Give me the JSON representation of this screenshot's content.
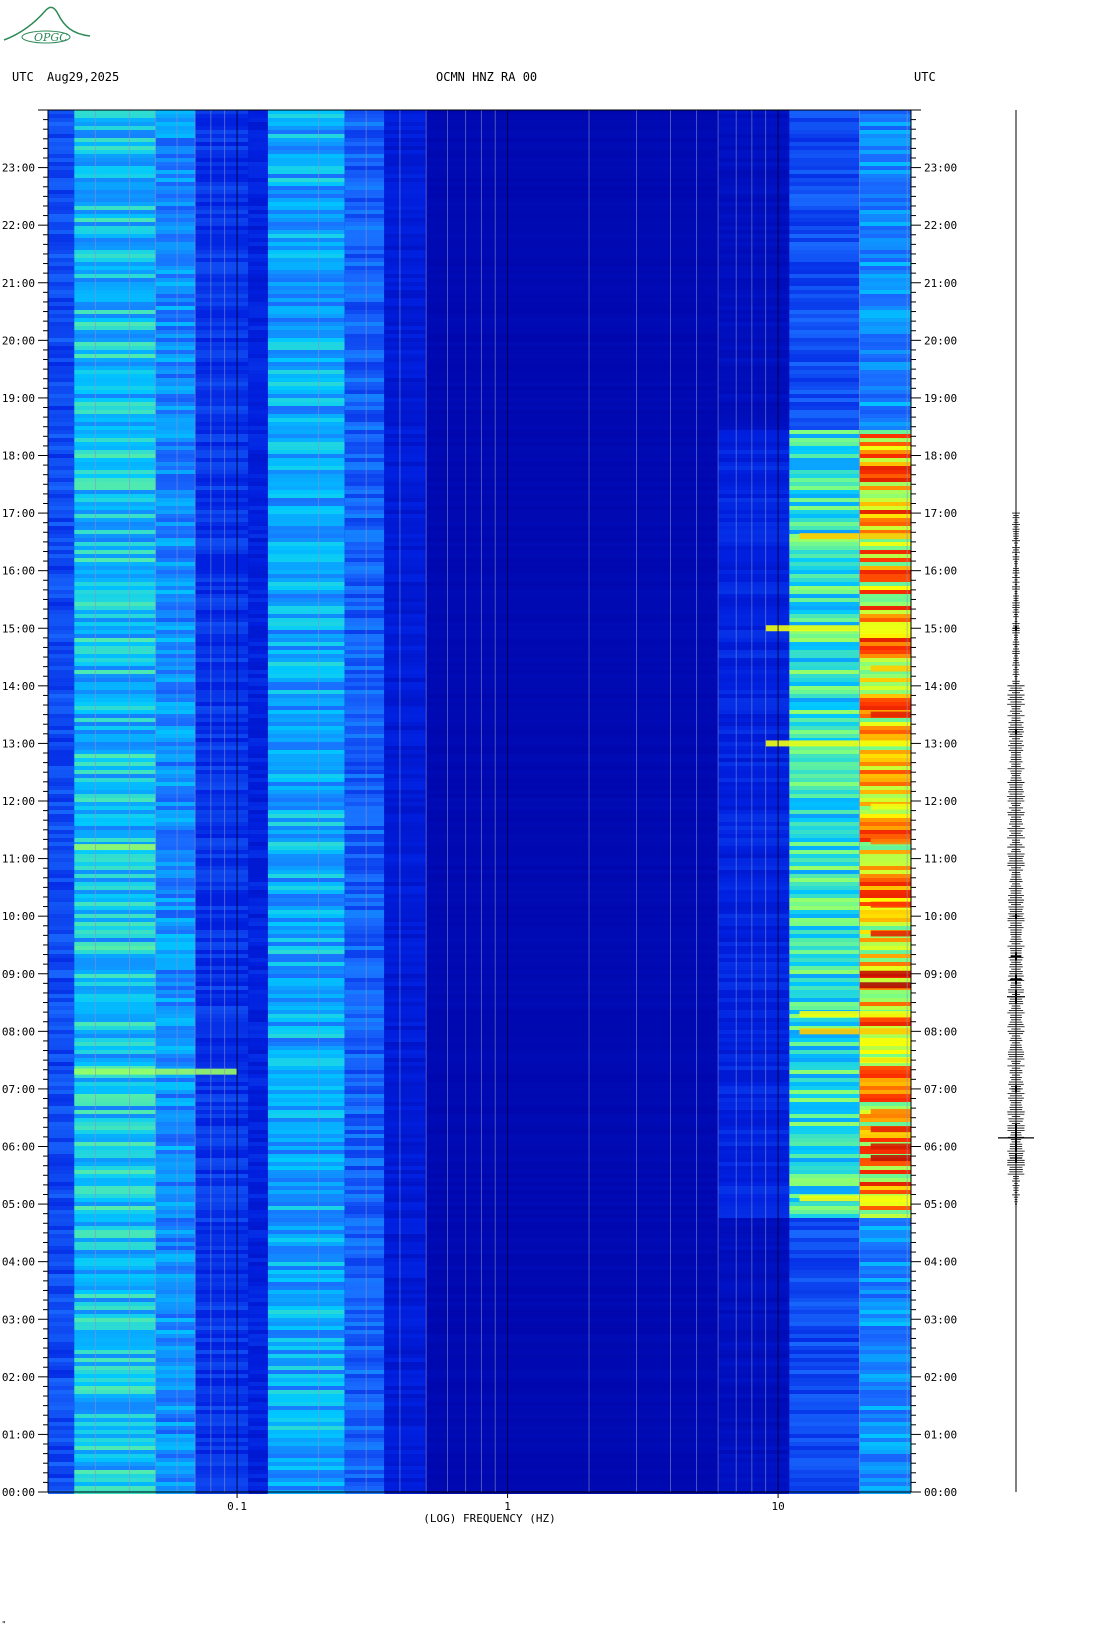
{
  "header": {
    "left_tz": "UTC",
    "date": "Aug29,2025",
    "station": "OCMN HNZ RA 00",
    "right_tz": "UTC"
  },
  "logo_text": "OPGC",
  "corner_mark": "\"",
  "chart_data": {
    "type": "heatmap",
    "title": "OCMN HNZ RA 00",
    "xlabel": "(LOG) FREQUENCY (HZ)",
    "x_scale": "log",
    "xlim_hz": [
      0.02,
      31
    ],
    "x_ticks": [
      {
        "value": 0.1,
        "label": "0.1"
      },
      {
        "value": 1,
        "label": "1"
      },
      {
        "value": 10,
        "label": "10"
      }
    ],
    "ylabel_left": "UTC",
    "ylabel_right": "UTC",
    "ylim_hours": [
      0,
      24
    ],
    "y_ticks": [
      {
        "hour": 0,
        "label": "00:00"
      },
      {
        "hour": 1,
        "label": "01:00"
      },
      {
        "hour": 2,
        "label": "02:00"
      },
      {
        "hour": 3,
        "label": "03:00"
      },
      {
        "hour": 4,
        "label": "04:00"
      },
      {
        "hour": 5,
        "label": "05:00"
      },
      {
        "hour": 6,
        "label": "06:00"
      },
      {
        "hour": 7,
        "label": "07:00"
      },
      {
        "hour": 8,
        "label": "08:00"
      },
      {
        "hour": 9,
        "label": "09:00"
      },
      {
        "hour": 10,
        "label": "10:00"
      },
      {
        "hour": 11,
        "label": "11:00"
      },
      {
        "hour": 12,
        "label": "12:00"
      },
      {
        "hour": 13,
        "label": "13:00"
      },
      {
        "hour": 14,
        "label": "14:00"
      },
      {
        "hour": 15,
        "label": "15:00"
      },
      {
        "hour": 16,
        "label": "16:00"
      },
      {
        "hour": 17,
        "label": "17:00"
      },
      {
        "hour": 18,
        "label": "18:00"
      },
      {
        "hour": 19,
        "label": "19:00"
      },
      {
        "hour": 20,
        "label": "20:00"
      },
      {
        "hour": 21,
        "label": "21:00"
      },
      {
        "hour": 22,
        "label": "22:00"
      },
      {
        "hour": 23,
        "label": "23:00"
      }
    ],
    "grid": true,
    "colormap": [
      "#0000a0",
      "#0020e0",
      "#1a6cff",
      "#00c8ff",
      "#80ff80",
      "#ffff00",
      "#ff3000",
      "#a00000"
    ],
    "frequency_bands": [
      {
        "f_min": 0.02,
        "f_max": 0.025,
        "level": 0.22
      },
      {
        "f_min": 0.025,
        "f_max": 0.05,
        "level": 0.42
      },
      {
        "f_min": 0.05,
        "f_max": 0.07,
        "level": 0.34
      },
      {
        "f_min": 0.07,
        "f_max": 0.11,
        "level": 0.18
      },
      {
        "f_min": 0.11,
        "f_max": 0.13,
        "level": 0.14
      },
      {
        "f_min": 0.13,
        "f_max": 0.25,
        "level": 0.38
      },
      {
        "f_min": 0.25,
        "f_max": 0.35,
        "level": 0.26
      },
      {
        "f_min": 0.35,
        "f_max": 0.5,
        "level": 0.12
      },
      {
        "f_min": 0.5,
        "f_max": 6,
        "level": 0.04
      },
      {
        "f_min": 6,
        "f_max": 11,
        "level": 0.09
      },
      {
        "f_min": 11,
        "f_max": 20,
        "level": 0.3
      },
      {
        "f_min": 20,
        "f_max": 31,
        "level": 0.45
      }
    ],
    "events": [
      {
        "hour": 5.8,
        "f_min": 22,
        "f_max": 31,
        "level": 0.95
      },
      {
        "hour": 6.0,
        "f_min": 22,
        "f_max": 31,
        "level": 0.92
      },
      {
        "hour": 6.3,
        "f_min": 22,
        "f_max": 31,
        "level": 0.9
      },
      {
        "hour": 6.6,
        "f_min": 22,
        "f_max": 31,
        "level": 0.8
      },
      {
        "hour": 7.5,
        "f_min": 20,
        "f_max": 31,
        "level": 0.7
      },
      {
        "hour": 8.0,
        "f_min": 12,
        "f_max": 31,
        "level": 0.75
      },
      {
        "hour": 8.3,
        "f_min": 12,
        "f_max": 31,
        "level": 0.7
      },
      {
        "hour": 8.8,
        "f_min": 20,
        "f_max": 31,
        "level": 0.97
      },
      {
        "hour": 9.0,
        "f_min": 20,
        "f_max": 31,
        "level": 0.95
      },
      {
        "hour": 9.7,
        "f_min": 22,
        "f_max": 31,
        "level": 0.9
      },
      {
        "hour": 10.2,
        "f_min": 22,
        "f_max": 31,
        "level": 0.85
      },
      {
        "hour": 11.3,
        "f_min": 22,
        "f_max": 31,
        "level": 0.8
      },
      {
        "hour": 11.9,
        "f_min": 22,
        "f_max": 31,
        "level": 0.7
      },
      {
        "hour": 13.0,
        "f_min": 9,
        "f_max": 31,
        "level": 0.7
      },
      {
        "hour": 13.5,
        "f_min": 22,
        "f_max": 31,
        "level": 0.9
      },
      {
        "hour": 14.3,
        "f_min": 22,
        "f_max": 31,
        "level": 0.75
      },
      {
        "hour": 15.0,
        "f_min": 9,
        "f_max": 31,
        "level": 0.7
      },
      {
        "hour": 16.6,
        "f_min": 12,
        "f_max": 31,
        "level": 0.75
      },
      {
        "hour": 5.1,
        "f_min": 12,
        "f_max": 31,
        "level": 0.7
      },
      {
        "hour": 7.3,
        "f_min": 0.025,
        "f_max": 0.1,
        "level": 0.6
      },
      {
        "hour": 11.2,
        "f_min": 0.025,
        "f_max": 0.05,
        "level": 0.6
      }
    ],
    "seismogram": {
      "spikes": [
        {
          "hour": 6.15,
          "amplitude": 1.0
        },
        {
          "hour": 5.8,
          "amplitude": 0.35
        },
        {
          "hour": 8.6,
          "amplitude": 0.5
        },
        {
          "hour": 8.9,
          "amplitude": 0.35
        },
        {
          "hour": 9.3,
          "amplitude": 0.3
        },
        {
          "hour": 7.0,
          "amplitude": 0.25
        },
        {
          "hour": 13.2,
          "amplitude": 0.2
        },
        {
          "hour": 15.0,
          "amplitude": 0.2
        },
        {
          "hour": 10.0,
          "amplitude": 0.2
        }
      ]
    }
  }
}
